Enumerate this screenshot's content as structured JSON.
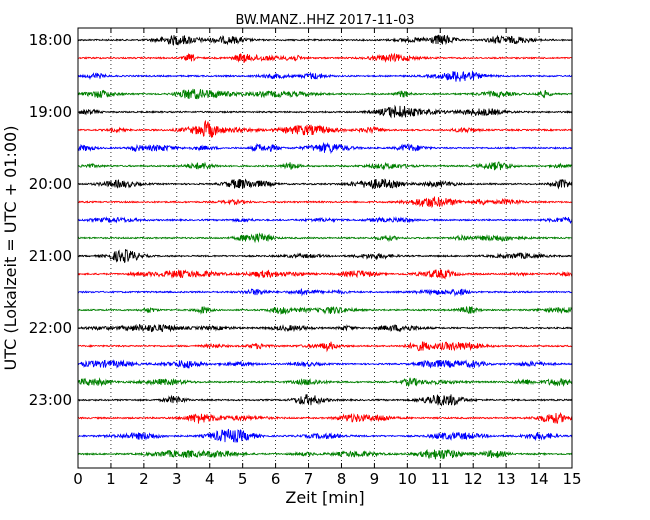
{
  "chart_data": {
    "type": "line",
    "title": "BW.MANZ..HHZ 2017-11-03",
    "xlabel": "Zeit  [min]",
    "ylabel": "UTC (Lokalzeit = UTC + 01:00)",
    "xlim": [
      0,
      15
    ],
    "x_ticks": [
      "0",
      "1",
      "2",
      "3",
      "4",
      "5",
      "6",
      "7",
      "8",
      "9",
      "10",
      "11",
      "12",
      "13",
      "14",
      "15"
    ],
    "y_tick_labels": [
      "18:00",
      "19:00",
      "20:00",
      "21:00",
      "22:00",
      "23:00"
    ],
    "trace_start_times": [
      "18:00",
      "18:15",
      "18:30",
      "18:45",
      "19:00",
      "19:15",
      "19:30",
      "19:45",
      "20:00",
      "20:15",
      "20:30",
      "20:45",
      "21:00",
      "21:15",
      "21:30",
      "21:45",
      "22:00",
      "22:15",
      "22:30",
      "22:45",
      "23:00",
      "23:15",
      "23:30",
      "23:45"
    ],
    "trace_duration_min": 15,
    "trace_color_cycle": [
      "#000000",
      "#ff0000",
      "#0000ff",
      "#008000"
    ],
    "grid": {
      "vertical": "dotted",
      "horizontal": false
    }
  }
}
